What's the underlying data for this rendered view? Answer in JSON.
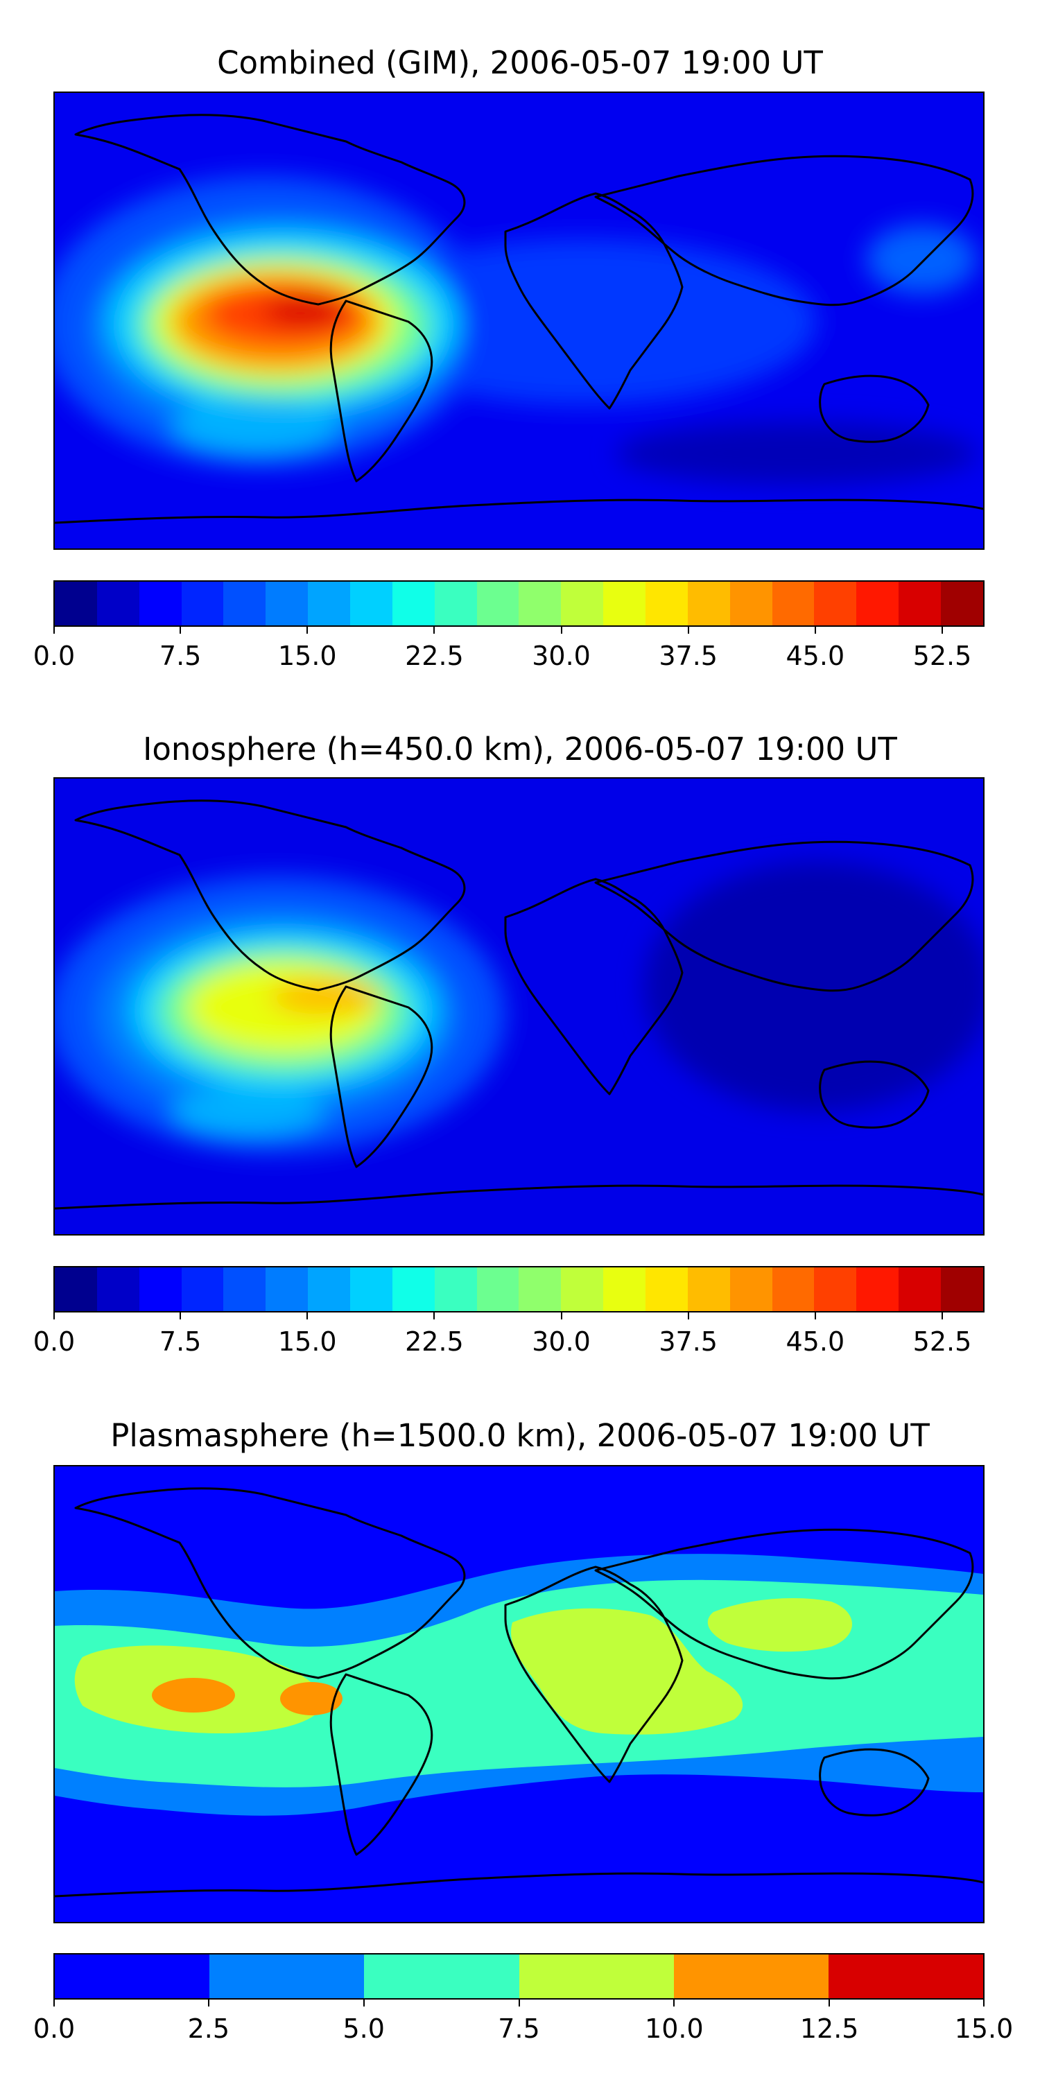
{
  "panels": [
    {
      "title": "Combined (GIM), 2006-05-07 19:00 UT",
      "colorbar": {
        "ticks": [
          "0.0",
          "7.5",
          "15.0",
          "22.5",
          "30.0",
          "37.5",
          "45.0",
          "52.5"
        ],
        "range": [
          0,
          55
        ],
        "colors": [
          "#00008f",
          "#0000c8",
          "#0000ff",
          "#0025ff",
          "#0050ff",
          "#007cff",
          "#00a4ff",
          "#00d0ff",
          "#10ffe8",
          "#3affc0",
          "#6cff90",
          "#90ff6c",
          "#c0ff3a",
          "#e8ff10",
          "#ffe600",
          "#ffbc00",
          "#ff9400",
          "#ff6a00",
          "#ff4000",
          "#ff1800",
          "#d80000",
          "#a00000"
        ]
      }
    },
    {
      "title": "Ionosphere  (h=450.0 km), 2006-05-07 19:00 UT",
      "colorbar": {
        "ticks": [
          "0.0",
          "7.5",
          "15.0",
          "22.5",
          "30.0",
          "37.5",
          "45.0",
          "52.5"
        ],
        "range": [
          0,
          55
        ],
        "colors": [
          "#00008f",
          "#0000c8",
          "#0000ff",
          "#0025ff",
          "#0050ff",
          "#007cff",
          "#00a4ff",
          "#00d0ff",
          "#10ffe8",
          "#3affc0",
          "#6cff90",
          "#90ff6c",
          "#c0ff3a",
          "#e8ff10",
          "#ffe600",
          "#ffbc00",
          "#ff9400",
          "#ff6a00",
          "#ff4000",
          "#ff1800",
          "#d80000",
          "#a00000"
        ]
      }
    },
    {
      "title": "Plasmasphere (h=1500.0 km), 2006-05-07 19:00 UT",
      "colorbar": {
        "ticks": [
          "0.0",
          "2.5",
          "5.0",
          "7.5",
          "10.0",
          "12.5",
          "15.0"
        ],
        "range": [
          0,
          15
        ],
        "colors": [
          "#0000ff",
          "#0080ff",
          "#3affc0",
          "#c0ff3a",
          "#ff9400",
          "#d80000"
        ]
      }
    }
  ]
}
